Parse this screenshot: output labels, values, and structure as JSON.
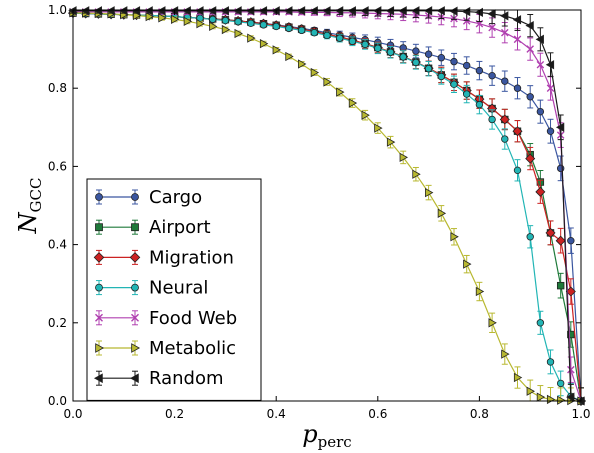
{
  "chart_data": {
    "type": "line",
    "xlabel": "p_perc",
    "xlabel_main": "p",
    "xlabel_sub": "perc",
    "ylabel": "N_GCC",
    "ylabel_main": "N",
    "ylabel_sub": "GCC",
    "xlim": [
      0.0,
      1.0
    ],
    "ylim": [
      0.0,
      1.0
    ],
    "xticks": [
      "0.0",
      "0.2",
      "0.4",
      "0.6",
      "0.8",
      "1.0"
    ],
    "yticks": [
      "0.0",
      "0.2",
      "0.4",
      "0.6",
      "0.8",
      "1.0"
    ],
    "grid": false,
    "legend_position": "lower-left",
    "series": [
      {
        "name": "Cargo",
        "color": "#3a56a0",
        "marker": "circle",
        "points": [
          [
            0.0,
            0.992
          ],
          [
            0.025,
            0.991
          ],
          [
            0.05,
            0.99
          ],
          [
            0.075,
            0.989
          ],
          [
            0.1,
            0.988
          ],
          [
            0.125,
            0.987
          ],
          [
            0.15,
            0.986
          ],
          [
            0.175,
            0.985
          ],
          [
            0.2,
            0.983
          ],
          [
            0.225,
            0.981
          ],
          [
            0.25,
            0.979
          ],
          [
            0.275,
            0.977
          ],
          [
            0.3,
            0.975
          ],
          [
            0.325,
            0.972
          ],
          [
            0.35,
            0.969
          ],
          [
            0.375,
            0.966
          ],
          [
            0.4,
            0.962
          ],
          [
            0.425,
            0.958
          ],
          [
            0.45,
            0.953
          ],
          [
            0.475,
            0.948
          ],
          [
            0.5,
            0.942
          ],
          [
            0.525,
            0.936
          ],
          [
            0.55,
            0.93
          ],
          [
            0.575,
            0.924
          ],
          [
            0.6,
            0.917
          ],
          [
            0.625,
            0.91
          ],
          [
            0.65,
            0.903
          ],
          [
            0.675,
            0.895
          ],
          [
            0.7,
            0.887
          ],
          [
            0.725,
            0.878
          ],
          [
            0.75,
            0.868
          ],
          [
            0.775,
            0.858
          ],
          [
            0.8,
            0.845
          ],
          [
            0.825,
            0.832
          ],
          [
            0.85,
            0.818
          ],
          [
            0.875,
            0.8
          ],
          [
            0.9,
            0.778
          ],
          [
            0.92,
            0.74
          ],
          [
            0.94,
            0.69
          ],
          [
            0.96,
            0.595
          ],
          [
            0.98,
            0.41
          ],
          [
            1.0,
            0.0
          ]
        ]
      },
      {
        "name": "Airport",
        "color": "#1f7a3a",
        "marker": "square",
        "points": [
          [
            0.0,
            0.992
          ],
          [
            0.025,
            0.991
          ],
          [
            0.05,
            0.99
          ],
          [
            0.075,
            0.989
          ],
          [
            0.1,
            0.988
          ],
          [
            0.125,
            0.987
          ],
          [
            0.15,
            0.986
          ],
          [
            0.175,
            0.985
          ],
          [
            0.2,
            0.983
          ],
          [
            0.225,
            0.981
          ],
          [
            0.25,
            0.979
          ],
          [
            0.275,
            0.977
          ],
          [
            0.3,
            0.975
          ],
          [
            0.325,
            0.972
          ],
          [
            0.35,
            0.969
          ],
          [
            0.375,
            0.965
          ],
          [
            0.4,
            0.961
          ],
          [
            0.425,
            0.956
          ],
          [
            0.45,
            0.951
          ],
          [
            0.475,
            0.945
          ],
          [
            0.5,
            0.938
          ],
          [
            0.525,
            0.931
          ],
          [
            0.55,
            0.923
          ],
          [
            0.575,
            0.914
          ],
          [
            0.6,
            0.904
          ],
          [
            0.625,
            0.893
          ],
          [
            0.65,
            0.881
          ],
          [
            0.675,
            0.867
          ],
          [
            0.7,
            0.851
          ],
          [
            0.725,
            0.834
          ],
          [
            0.75,
            0.815
          ],
          [
            0.775,
            0.794
          ],
          [
            0.8,
            0.772
          ],
          [
            0.825,
            0.748
          ],
          [
            0.85,
            0.72
          ],
          [
            0.875,
            0.69
          ],
          [
            0.9,
            0.63
          ],
          [
            0.92,
            0.56
          ],
          [
            0.94,
            0.43
          ],
          [
            0.96,
            0.295
          ],
          [
            0.98,
            0.17
          ],
          [
            1.0,
            0.0
          ]
        ]
      },
      {
        "name": "Migration",
        "color": "#cc2222",
        "marker": "diamond",
        "points": [
          [
            0.0,
            0.992
          ],
          [
            0.025,
            0.991
          ],
          [
            0.05,
            0.99
          ],
          [
            0.075,
            0.989
          ],
          [
            0.1,
            0.988
          ],
          [
            0.125,
            0.987
          ],
          [
            0.15,
            0.986
          ],
          [
            0.175,
            0.985
          ],
          [
            0.2,
            0.983
          ],
          [
            0.225,
            0.981
          ],
          [
            0.25,
            0.979
          ],
          [
            0.275,
            0.977
          ],
          [
            0.3,
            0.975
          ],
          [
            0.325,
            0.972
          ],
          [
            0.35,
            0.969
          ],
          [
            0.375,
            0.965
          ],
          [
            0.4,
            0.961
          ],
          [
            0.425,
            0.956
          ],
          [
            0.45,
            0.951
          ],
          [
            0.475,
            0.945
          ],
          [
            0.5,
            0.938
          ],
          [
            0.525,
            0.931
          ],
          [
            0.55,
            0.923
          ],
          [
            0.575,
            0.914
          ],
          [
            0.6,
            0.904
          ],
          [
            0.625,
            0.893
          ],
          [
            0.65,
            0.881
          ],
          [
            0.675,
            0.867
          ],
          [
            0.7,
            0.851
          ],
          [
            0.725,
            0.834
          ],
          [
            0.75,
            0.815
          ],
          [
            0.775,
            0.794
          ],
          [
            0.8,
            0.772
          ],
          [
            0.825,
            0.748
          ],
          [
            0.85,
            0.72
          ],
          [
            0.875,
            0.69
          ],
          [
            0.9,
            0.62
          ],
          [
            0.92,
            0.535
          ],
          [
            0.94,
            0.43
          ],
          [
            0.96,
            0.41
          ],
          [
            0.98,
            0.28
          ],
          [
            1.0,
            0.0
          ]
        ]
      },
      {
        "name": "Neural",
        "color": "#22b5b5",
        "marker": "circle",
        "points": [
          [
            0.0,
            0.992
          ],
          [
            0.025,
            0.991
          ],
          [
            0.05,
            0.99
          ],
          [
            0.075,
            0.989
          ],
          [
            0.1,
            0.988
          ],
          [
            0.125,
            0.987
          ],
          [
            0.15,
            0.986
          ],
          [
            0.175,
            0.985
          ],
          [
            0.2,
            0.983
          ],
          [
            0.225,
            0.981
          ],
          [
            0.25,
            0.979
          ],
          [
            0.275,
            0.976
          ],
          [
            0.3,
            0.973
          ],
          [
            0.325,
            0.97
          ],
          [
            0.35,
            0.966
          ],
          [
            0.375,
            0.962
          ],
          [
            0.4,
            0.958
          ],
          [
            0.425,
            0.953
          ],
          [
            0.45,
            0.948
          ],
          [
            0.475,
            0.942
          ],
          [
            0.5,
            0.935
          ],
          [
            0.525,
            0.928
          ],
          [
            0.55,
            0.92
          ],
          [
            0.575,
            0.912
          ],
          [
            0.6,
            0.902
          ],
          [
            0.625,
            0.892
          ],
          [
            0.65,
            0.88
          ],
          [
            0.675,
            0.866
          ],
          [
            0.7,
            0.85
          ],
          [
            0.725,
            0.83
          ],
          [
            0.75,
            0.81
          ],
          [
            0.775,
            0.785
          ],
          [
            0.8,
            0.758
          ],
          [
            0.825,
            0.72
          ],
          [
            0.85,
            0.67
          ],
          [
            0.875,
            0.59
          ],
          [
            0.9,
            0.42
          ],
          [
            0.92,
            0.2
          ],
          [
            0.94,
            0.1
          ],
          [
            0.96,
            0.045
          ],
          [
            0.98,
            0.012
          ],
          [
            1.0,
            0.0
          ]
        ]
      },
      {
        "name": "Food Web",
        "color": "#b040b0",
        "marker": "x",
        "points": [
          [
            0.0,
            0.995
          ],
          [
            0.025,
            0.995
          ],
          [
            0.05,
            0.995
          ],
          [
            0.075,
            0.995
          ],
          [
            0.1,
            0.995
          ],
          [
            0.125,
            0.995
          ],
          [
            0.15,
            0.995
          ],
          [
            0.175,
            0.995
          ],
          [
            0.2,
            0.995
          ],
          [
            0.225,
            0.995
          ],
          [
            0.25,
            0.995
          ],
          [
            0.275,
            0.995
          ],
          [
            0.3,
            0.995
          ],
          [
            0.325,
            0.995
          ],
          [
            0.35,
            0.995
          ],
          [
            0.375,
            0.995
          ],
          [
            0.4,
            0.995
          ],
          [
            0.425,
            0.995
          ],
          [
            0.45,
            0.994
          ],
          [
            0.475,
            0.994
          ],
          [
            0.5,
            0.994
          ],
          [
            0.525,
            0.993
          ],
          [
            0.55,
            0.993
          ],
          [
            0.575,
            0.992
          ],
          [
            0.6,
            0.991
          ],
          [
            0.625,
            0.99
          ],
          [
            0.65,
            0.989
          ],
          [
            0.675,
            0.987
          ],
          [
            0.7,
            0.985
          ],
          [
            0.725,
            0.982
          ],
          [
            0.75,
            0.978
          ],
          [
            0.775,
            0.972
          ],
          [
            0.8,
            0.965
          ],
          [
            0.825,
            0.955
          ],
          [
            0.85,
            0.942
          ],
          [
            0.875,
            0.925
          ],
          [
            0.9,
            0.9
          ],
          [
            0.92,
            0.86
          ],
          [
            0.94,
            0.8
          ],
          [
            0.96,
            0.68
          ],
          [
            0.98,
            0.08
          ],
          [
            1.0,
            0.0
          ]
        ]
      },
      {
        "name": "Metabolic",
        "color": "#b8b830",
        "marker": "triangle-right",
        "points": [
          [
            0.0,
            0.993
          ],
          [
            0.025,
            0.992
          ],
          [
            0.05,
            0.991
          ],
          [
            0.075,
            0.99
          ],
          [
            0.1,
            0.988
          ],
          [
            0.125,
            0.986
          ],
          [
            0.15,
            0.983
          ],
          [
            0.175,
            0.98
          ],
          [
            0.2,
            0.976
          ],
          [
            0.225,
            0.971
          ],
          [
            0.25,
            0.965
          ],
          [
            0.275,
            0.958
          ],
          [
            0.3,
            0.95
          ],
          [
            0.325,
            0.94
          ],
          [
            0.35,
            0.928
          ],
          [
            0.375,
            0.914
          ],
          [
            0.4,
            0.898
          ],
          [
            0.425,
            0.881
          ],
          [
            0.45,
            0.862
          ],
          [
            0.475,
            0.84
          ],
          [
            0.5,
            0.816
          ],
          [
            0.525,
            0.79
          ],
          [
            0.55,
            0.762
          ],
          [
            0.575,
            0.731
          ],
          [
            0.6,
            0.698
          ],
          [
            0.625,
            0.662
          ],
          [
            0.65,
            0.623
          ],
          [
            0.675,
            0.58
          ],
          [
            0.7,
            0.533
          ],
          [
            0.725,
            0.48
          ],
          [
            0.75,
            0.42
          ],
          [
            0.775,
            0.35
          ],
          [
            0.8,
            0.28
          ],
          [
            0.825,
            0.2
          ],
          [
            0.85,
            0.12
          ],
          [
            0.875,
            0.06
          ],
          [
            0.9,
            0.025
          ],
          [
            0.92,
            0.01
          ],
          [
            0.94,
            0.004
          ],
          [
            0.96,
            0.002
          ],
          [
            0.98,
            0.001
          ],
          [
            1.0,
            0.0
          ]
        ]
      },
      {
        "name": "Random",
        "color": "#1a1a1a",
        "marker": "triangle-left",
        "points": [
          [
            0.0,
            0.998
          ],
          [
            0.025,
            0.998
          ],
          [
            0.05,
            0.998
          ],
          [
            0.075,
            0.998
          ],
          [
            0.1,
            0.998
          ],
          [
            0.125,
            0.998
          ],
          [
            0.15,
            0.998
          ],
          [
            0.175,
            0.998
          ],
          [
            0.2,
            0.998
          ],
          [
            0.225,
            0.998
          ],
          [
            0.25,
            0.998
          ],
          [
            0.275,
            0.998
          ],
          [
            0.3,
            0.998
          ],
          [
            0.325,
            0.998
          ],
          [
            0.35,
            0.998
          ],
          [
            0.375,
            0.998
          ],
          [
            0.4,
            0.998
          ],
          [
            0.425,
            0.998
          ],
          [
            0.45,
            0.998
          ],
          [
            0.475,
            0.998
          ],
          [
            0.5,
            0.998
          ],
          [
            0.525,
            0.998
          ],
          [
            0.55,
            0.998
          ],
          [
            0.575,
            0.998
          ],
          [
            0.6,
            0.998
          ],
          [
            0.625,
            0.998
          ],
          [
            0.65,
            0.998
          ],
          [
            0.675,
            0.998
          ],
          [
            0.7,
            0.998
          ],
          [
            0.725,
            0.998
          ],
          [
            0.75,
            0.997
          ],
          [
            0.775,
            0.996
          ],
          [
            0.8,
            0.994
          ],
          [
            0.825,
            0.99
          ],
          [
            0.85,
            0.985
          ],
          [
            0.875,
            0.975
          ],
          [
            0.9,
            0.96
          ],
          [
            0.92,
            0.925
          ],
          [
            0.94,
            0.86
          ],
          [
            0.96,
            0.7
          ],
          [
            0.98,
            0.01
          ],
          [
            1.0,
            0.0
          ]
        ]
      }
    ]
  }
}
